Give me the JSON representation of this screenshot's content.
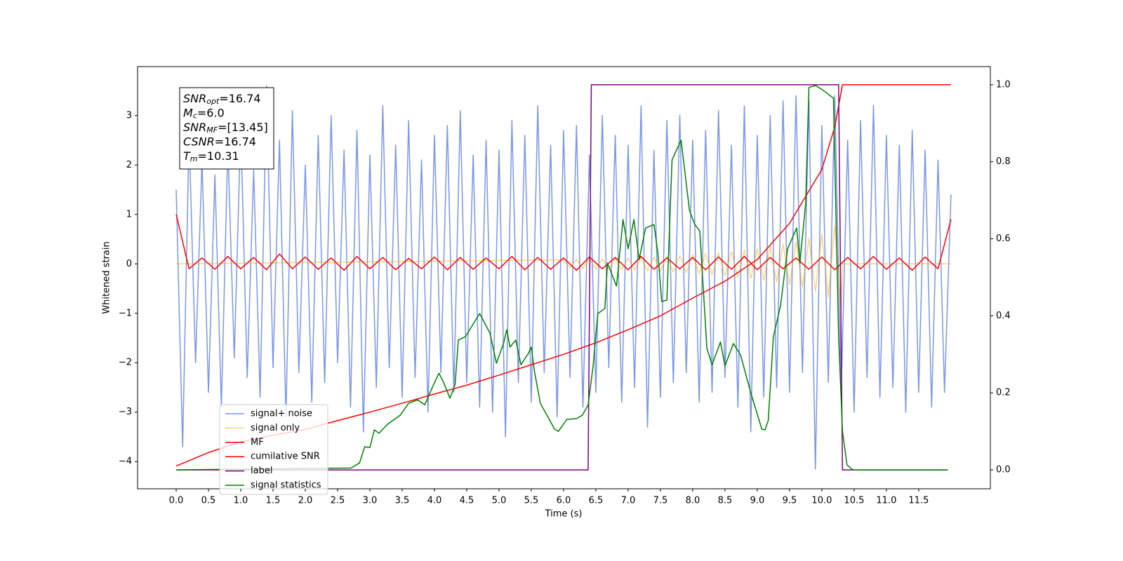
{
  "chart_data": {
    "type": "line",
    "xlabel": "Time (s)",
    "ylabel": "Whitened strain",
    "xlim": [
      -0.598,
      12.61
    ],
    "ylim": [
      -4.55,
      3.99
    ],
    "y2lim": [
      -0.049,
      1.047
    ],
    "xticks": [
      {
        "value": 0,
        "label": "0.0"
      },
      0.5,
      {
        "value": 1,
        "label": "1.0"
      },
      1.5,
      {
        "value": 2,
        "label": "2.0"
      },
      2.5,
      {
        "value": 3,
        "label": "3.0"
      },
      3.5,
      {
        "value": 4,
        "label": "4.0"
      },
      4.5,
      {
        "value": 5,
        "label": "5.0"
      },
      5.5,
      {
        "value": 6,
        "label": "6.0"
      },
      6.5,
      {
        "value": 7,
        "label": "7.0"
      },
      7.5,
      {
        "value": 8,
        "label": "8.0"
      },
      8.5,
      {
        "value": 9,
        "label": "9.0"
      },
      9.5,
      {
        "value": 10,
        "label": "10.0"
      },
      10.5,
      {
        "value": 11,
        "label": "11.0"
      },
      11.5
    ],
    "yticks": [
      {
        "value": -4,
        "label": "−4"
      },
      {
        "value": -3,
        "label": "−3"
      },
      {
        "value": -2,
        "label": "−2"
      },
      {
        "value": -1,
        "label": "−1"
      },
      0,
      1,
      2,
      3
    ],
    "y2ticks": [
      {
        "value": 0,
        "label": "0.0"
      },
      0.2,
      0.4,
      0.6,
      0.8,
      {
        "value": 1,
        "label": "1.0"
      }
    ],
    "legend": "lower left",
    "annotation": [
      {
        "main": "SNR",
        "sub": "opt",
        "rest": "=16.74"
      },
      {
        "main": "M",
        "sub": "c",
        "rest": "=6.0"
      },
      {
        "main": "SNR",
        "sub": "MF",
        "rest": "=[13.45]"
      },
      {
        "main": "CSNR",
        "rest": "=16.74"
      },
      {
        "main": "T",
        "sub": "m",
        "rest": "=10.31"
      }
    ],
    "series": [
      {
        "name": "signal+ noise",
        "color": "royalblue",
        "alpha": 0.7,
        "axis": "y",
        "x0": 0,
        "dx": 0.1,
        "values": [
          1.5,
          -3.7,
          2.6,
          -2.0,
          2.1,
          -2.6,
          1.8,
          -2.9,
          2.4,
          -1.9,
          2.8,
          -2.3,
          1.9,
          -2.7,
          3.6,
          -2.1,
          2.5,
          -3.1,
          3.1,
          -2.2,
          2.0,
          -2.8,
          2.6,
          -2.4,
          3.0,
          -2.0,
          2.3,
          -2.9,
          2.7,
          -3.4,
          2.2,
          -2.5,
          3.2,
          -2.1,
          2.4,
          -2.7,
          2.9,
          -2.3,
          2.1,
          -3.0,
          2.6,
          -2.2,
          2.8,
          -2.6,
          3.1,
          -2.4,
          2.2,
          -2.9,
          2.5,
          -3.0,
          2.3,
          -3.5,
          2.9,
          -2.4,
          2.6,
          -2.8,
          3.2,
          -2.2,
          2.4,
          -3.1,
          2.7,
          -2.3,
          2.8,
          -2.9,
          2.2,
          -2.6,
          3.0,
          -2.1,
          2.6,
          -2.8,
          2.4,
          -2.5,
          3.2,
          -3.3,
          2.3,
          -2.7,
          2.9,
          -2.4,
          3.0,
          -2.2,
          2.5,
          -2.8,
          2.7,
          -2.6,
          3.1,
          -2.3,
          2.4,
          -2.9,
          3.2,
          -3.4,
          2.6,
          -2.7,
          3.0,
          -2.5,
          3.3,
          -2.6,
          3.4,
          -2.2,
          3.3,
          -4.15,
          2.8,
          -2.4,
          3.4,
          -2.6,
          2.5,
          -3.0,
          2.9,
          -2.3,
          3.2,
          -2.7,
          2.6,
          -2.5,
          2.4,
          -3.0,
          2.7,
          -2.6,
          2.3,
          -2.9,
          2.1,
          -2.6,
          1.4
        ]
      },
      {
        "name": "signal only",
        "color": "orange",
        "alpha": 0.5,
        "axis": "y",
        "x": [
          0,
          6.0,
          6.1,
          6.2,
          6.3,
          6.4,
          6.5,
          6.6,
          6.7,
          6.8,
          6.9,
          7.0,
          7.1,
          7.2,
          7.3,
          7.4,
          7.5,
          7.6,
          7.7,
          7.8,
          7.9,
          8.0,
          8.1,
          8.2,
          8.3,
          8.4,
          8.5,
          8.6,
          8.7,
          8.8,
          8.9,
          9.0,
          9.1,
          9.2,
          9.3,
          9.4,
          9.5,
          9.6,
          9.7,
          9.8,
          9.9,
          10.0,
          10.1,
          10.2,
          10.3,
          10.32,
          12
        ],
        "values": [
          0,
          0.08,
          -0.08,
          0.09,
          -0.09,
          0.1,
          -0.1,
          0.1,
          -0.11,
          0.11,
          -0.12,
          0.12,
          -0.13,
          0.13,
          -0.14,
          0.14,
          -0.15,
          0.16,
          -0.17,
          0.17,
          -0.18,
          0.19,
          -0.2,
          0.21,
          -0.22,
          0.23,
          -0.24,
          0.25,
          -0.27,
          0.28,
          -0.3,
          0.31,
          -0.33,
          0.35,
          -0.37,
          0.4,
          -0.42,
          0.45,
          -0.48,
          0.52,
          -0.56,
          0.6,
          -0.68,
          0.78,
          -0.9,
          0,
          0
        ]
      },
      {
        "name": "MF",
        "color": "red",
        "alpha": 1,
        "axis": "y",
        "x0": 0,
        "dx": 0.2,
        "values": [
          1.0,
          -0.1,
          0.12,
          -0.11,
          0.15,
          -0.1,
          0.13,
          -0.12,
          0.2,
          -0.1,
          0.14,
          -0.11,
          0.12,
          -0.13,
          0.15,
          -0.1,
          0.13,
          -0.12,
          0.11,
          -0.1,
          0.14,
          -0.12,
          0.13,
          -0.11,
          0.12,
          -0.1,
          0.15,
          -0.12,
          0.13,
          -0.11,
          0.12,
          -0.13,
          0.14,
          -0.1,
          0.13,
          -0.12,
          0.15,
          -0.11,
          0.12,
          -0.1,
          0.13,
          -0.12,
          0.14,
          -0.11,
          0.15,
          -0.12,
          0.13,
          -0.1,
          0.12,
          -0.11,
          0.14,
          -0.12,
          0.13,
          -0.1,
          0.15,
          -0.11,
          0.12,
          -0.13,
          0.14,
          -0.1,
          0.9
        ]
      },
      {
        "name": "cumilative SNR",
        "color": "red",
        "alpha": 1,
        "axis": "y2",
        "x": [
          0,
          0.5,
          1,
          1.5,
          2,
          2.5,
          3,
          3.5,
          4,
          4.5,
          5,
          5.5,
          6,
          6.5,
          7,
          7.5,
          8,
          8.5,
          9,
          9.5,
          10,
          10.2,
          10.32,
          12
        ],
        "values": [
          0.01,
          0.045,
          0.073,
          0.09,
          0.105,
          0.128,
          0.15,
          0.173,
          0.197,
          0.22,
          0.246,
          0.273,
          0.3,
          0.33,
          0.364,
          0.4,
          0.446,
          0.49,
          0.546,
          0.64,
          0.78,
          0.89,
          1.0,
          1.0
        ]
      },
      {
        "name": "label",
        "color": "purple",
        "alpha": 1,
        "axis": "y2",
        "x": [
          0,
          6.38,
          6.43,
          10.26,
          10.32,
          11.95
        ],
        "values": [
          0,
          0,
          1,
          1,
          0,
          0
        ]
      },
      {
        "name": "signal statistics",
        "color": "green",
        "alpha": 1,
        "axis": "y2",
        "x": [
          0,
          2.71,
          2.84,
          2.92,
          3.0,
          3.07,
          3.14,
          3.27,
          3.47,
          3.6,
          3.74,
          3.85,
          3.98,
          4.07,
          4.14,
          4.24,
          4.32,
          4.37,
          4.48,
          4.7,
          4.86,
          4.96,
          5.07,
          5.12,
          5.17,
          5.26,
          5.34,
          5.45,
          5.5,
          5.55,
          5.64,
          5.73,
          5.86,
          5.92,
          6.05,
          6.2,
          6.29,
          6.38,
          6.46,
          6.53,
          6.64,
          6.68,
          6.82,
          6.92,
          7.0,
          7.09,
          7.17,
          7.27,
          7.4,
          7.46,
          7.52,
          7.6,
          7.68,
          7.82,
          7.95,
          8.03,
          8.11,
          8.22,
          8.3,
          8.43,
          8.5,
          8.63,
          8.74,
          8.9,
          9.07,
          9.12,
          9.17,
          9.25,
          9.36,
          9.47,
          9.61,
          9.66,
          9.75,
          9.8,
          9.9,
          10.01,
          10.18,
          10.26,
          10.32,
          10.39,
          10.48,
          11.95
        ],
        "values": [
          0,
          0.005,
          0.018,
          0.06,
          0.058,
          0.104,
          0.095,
          0.118,
          0.142,
          0.173,
          0.182,
          0.169,
          0.219,
          0.251,
          0.228,
          0.186,
          0.222,
          0.337,
          0.346,
          0.406,
          0.355,
          0.277,
          0.328,
          0.364,
          0.319,
          0.337,
          0.273,
          0.301,
          0.319,
          0.255,
          0.173,
          0.146,
          0.106,
          0.1,
          0.131,
          0.133,
          0.142,
          0.168,
          0.273,
          0.406,
          0.419,
          0.537,
          0.477,
          0.65,
          0.574,
          0.65,
          0.546,
          0.628,
          0.637,
          0.565,
          0.437,
          0.441,
          0.805,
          0.856,
          0.674,
          0.638,
          0.62,
          0.315,
          0.273,
          0.332,
          0.27,
          0.328,
          0.299,
          0.2,
          0.106,
          0.104,
          0.128,
          0.346,
          0.426,
          0.574,
          0.628,
          0.537,
          0.692,
          0.993,
          0.998,
          0.987,
          0.965,
          0.346,
          0.1,
          0.013,
          0,
          0
        ]
      }
    ]
  }
}
